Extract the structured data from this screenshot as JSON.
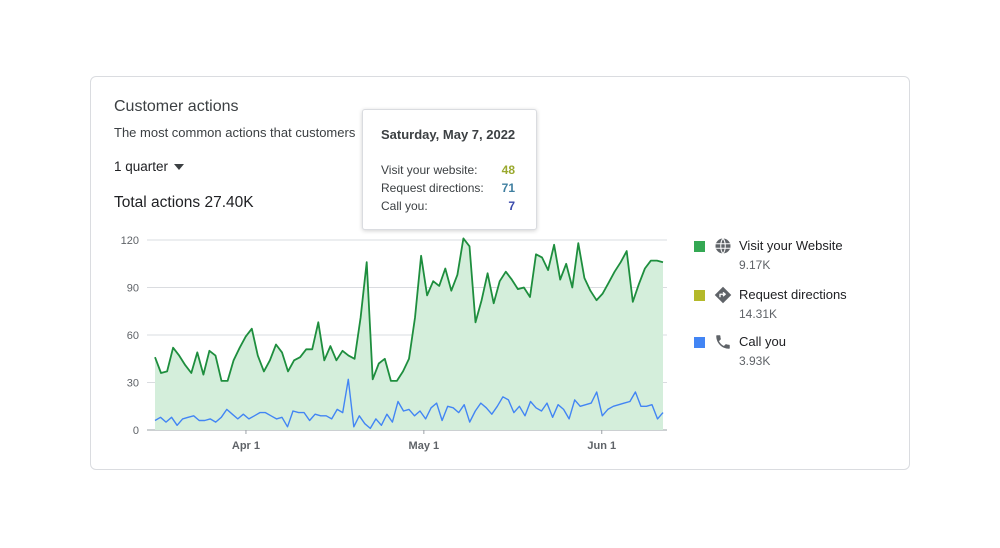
{
  "card": {
    "title": "Customer actions",
    "subtitle": "The most common actions that customers",
    "range_label": "1 quarter",
    "total_label": "Total actions 27.40K"
  },
  "tooltip": {
    "date": "Saturday, May 7, 2022",
    "rows": [
      {
        "label": "Visit your website:",
        "value": "48",
        "color": "#9aa92e"
      },
      {
        "label": "Request directions:",
        "value": "71",
        "color": "#3f7fa0"
      },
      {
        "label": "Call you:",
        "value": "7",
        "color": "#3949ab"
      }
    ]
  },
  "legend": [
    {
      "label": "Visit your Website",
      "value": "9.17K",
      "color": "#34a853",
      "icon": "globe-icon"
    },
    {
      "label": "Request directions",
      "value": "14.31K",
      "color": "#b4b92a",
      "icon": "directions-icon"
    },
    {
      "label": "Call you",
      "value": "3.93K",
      "color": "#4285f4",
      "icon": "phone-icon"
    }
  ],
  "chart_data": {
    "type": "area",
    "y_ticks": [
      "0",
      "30",
      "60",
      "90",
      "120"
    ],
    "ylim": [
      0,
      125
    ],
    "x_ticks": [
      {
        "label": "Apr 1",
        "day": 15
      },
      {
        "label": "May 1",
        "day": 45
      },
      {
        "label": "Jun 1",
        "day": 75
      }
    ],
    "series": [
      {
        "color": "#1e8e3e",
        "fill": "#d4eedb",
        "values": [
          46,
          36,
          37,
          52,
          47,
          41,
          36,
          49,
          35,
          50,
          47,
          31,
          31,
          44,
          52,
          59,
          64,
          47,
          37,
          44,
          54,
          49,
          37,
          44,
          46,
          51,
          51,
          68,
          44,
          53,
          44,
          50,
          47,
          45,
          71,
          106,
          32,
          42,
          45,
          31,
          31,
          37,
          45,
          71,
          110,
          85,
          94,
          91,
          102,
          88,
          98,
          121,
          116,
          68,
          82,
          99,
          80,
          94,
          100,
          95,
          89,
          90,
          84,
          111,
          109,
          101,
          117,
          95,
          105,
          90,
          118,
          96,
          88,
          82,
          86,
          93,
          100,
          106,
          113,
          81,
          92,
          102,
          107,
          107,
          106
        ],
        "x_start": -16
      },
      {
        "color": "#4285f4",
        "values": [
          6,
          8,
          5,
          8,
          3,
          7,
          8,
          9,
          6,
          6,
          7,
          5,
          8,
          13,
          10,
          7,
          10,
          7,
          9,
          11,
          11,
          9,
          7,
          8,
          2,
          12,
          11,
          11,
          6,
          10,
          9,
          9,
          7,
          13,
          11,
          32,
          2,
          9,
          4,
          1,
          7,
          3,
          10,
          5,
          18,
          12,
          13,
          9,
          12,
          7,
          14,
          17,
          6,
          15,
          14,
          11,
          16,
          5,
          12,
          17,
          14,
          10,
          15,
          21,
          19,
          11,
          15,
          9,
          18,
          14,
          12,
          17,
          8,
          16,
          13,
          7,
          19,
          15,
          16,
          17,
          24,
          9,
          13,
          15,
          16,
          17,
          18,
          24,
          15,
          15,
          16,
          7,
          11
        ],
        "x_start": -24
      }
    ]
  }
}
